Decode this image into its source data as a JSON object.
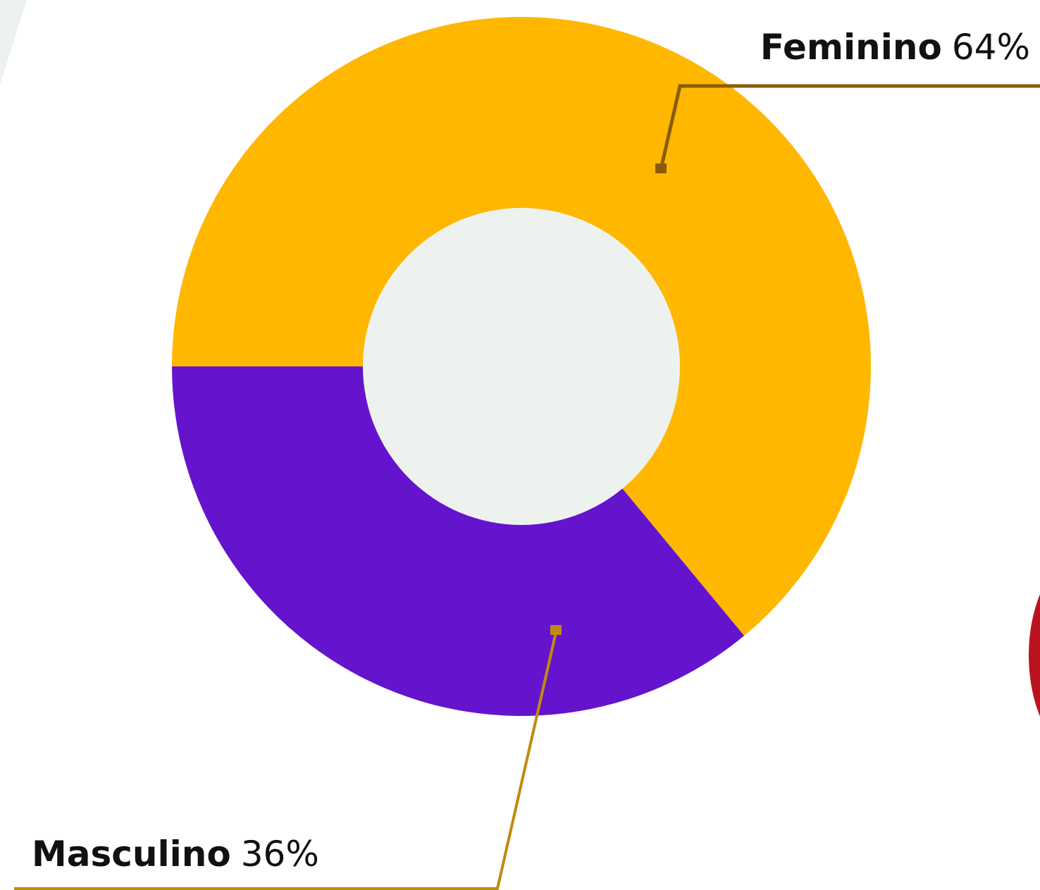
{
  "chart_data": {
    "type": "donut",
    "categories": [
      "Feminino",
      "Masculino"
    ],
    "values": [
      64,
      36
    ],
    "value_labels": [
      "64%",
      "36%"
    ],
    "colors": [
      "#ffb700",
      "#6414cc"
    ]
  }
}
